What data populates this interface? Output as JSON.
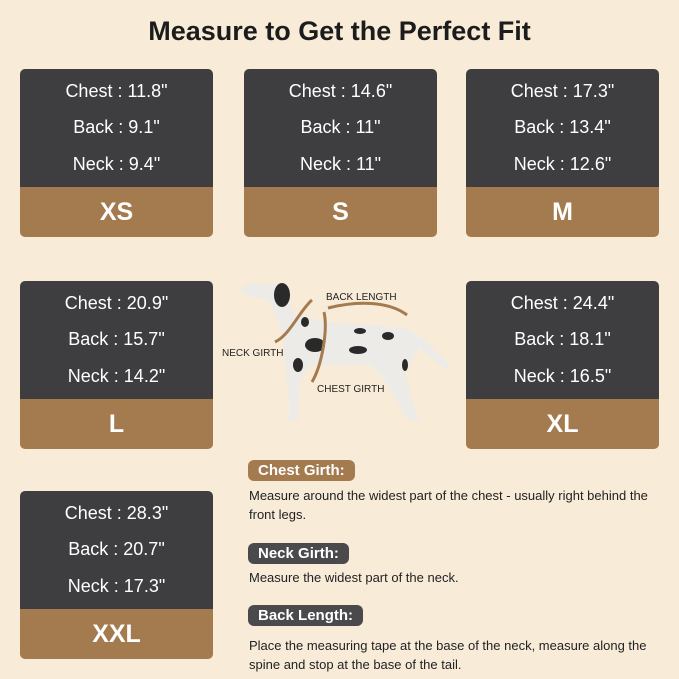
{
  "title": "Measure to Get the Perfect Fit",
  "sizes": [
    {
      "size": "XS",
      "chest": "Chest : 11.8\"",
      "back": "Back : 9.1\"",
      "neck": "Neck : 9.4\""
    },
    {
      "size": "S",
      "chest": "Chest : 14.6\"",
      "back": "Back : 11\"",
      "neck": "Neck : 11\""
    },
    {
      "size": "M",
      "chest": "Chest : 17.3\"",
      "back": "Back : 13.4\"",
      "neck": "Neck : 12.6\""
    },
    {
      "size": "L",
      "chest": "Chest : 20.9\"",
      "back": "Back : 15.7\"",
      "neck": "Neck : 14.2\""
    },
    {
      "size": "XL",
      "chest": "Chest : 24.4\"",
      "back": "Back : 18.1\"",
      "neck": "Neck : 16.5\""
    },
    {
      "size": "XXL",
      "chest": "Chest : 28.3\"",
      "back": "Back : 20.7\"",
      "neck": "Neck : 17.3\""
    }
  ],
  "diagram": {
    "back_length": "BACK LENGTH",
    "neck_girth": "NECK GIRTH",
    "chest_girth": "CHEST GIRTH"
  },
  "instructions": [
    {
      "label": "Chest Girth:",
      "text": "Measure around the widest part of the chest - usually right behind the front legs.",
      "color": "#a47a4f"
    },
    {
      "label": "Neck Girth:",
      "text": "Measure the widest part of the neck.",
      "color": "#4a4a4c"
    },
    {
      "label": "Back Length:",
      "text": "Place the measuring tape at the base of the neck, measure along the spine and stop at the base of the tail.",
      "color": "#4a4a4c"
    }
  ],
  "colors": {
    "background": "#f8ecd9",
    "card_dark": "#3e3e40",
    "card_brown": "#a47a4f"
  }
}
